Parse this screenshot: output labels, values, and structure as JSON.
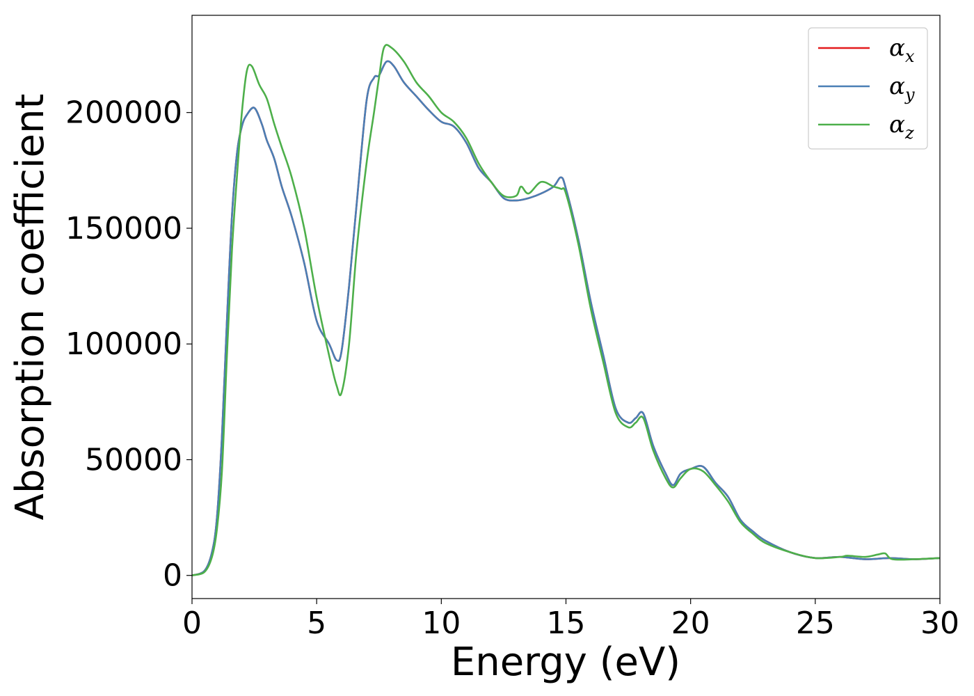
{
  "chart_data": {
    "type": "line",
    "title": "",
    "xlabel": "Energy (eV)",
    "ylabel": "Absorption coefficient",
    "xlim": [
      0,
      30
    ],
    "ylim": [
      -10000,
      242000
    ],
    "xticks": [
      0,
      5,
      10,
      15,
      20,
      25,
      30
    ],
    "xtick_labels": [
      "0",
      "5",
      "10",
      "15",
      "20",
      "25",
      "30"
    ],
    "yticks": [
      0,
      50000,
      100000,
      150000,
      200000
    ],
    "ytick_labels": [
      "0",
      "50000",
      "100000",
      "150000",
      "200000"
    ],
    "grid": false,
    "legend_position": "top-right",
    "series": [
      {
        "name": "α",
        "subscript": "x",
        "color": "#e41a1c",
        "x": [
          0,
          0.5,
          0.8,
          1.0,
          1.2,
          1.4,
          1.6,
          1.8,
          2.0,
          2.2,
          2.5,
          2.8,
          3.0,
          3.3,
          3.6,
          4.0,
          4.5,
          5.0,
          5.5,
          5.8,
          6.0,
          6.3,
          6.6,
          7.0,
          7.3,
          7.5,
          7.8,
          8.1,
          8.5,
          9.0,
          9.5,
          10.0,
          10.5,
          11.0,
          11.5,
          12.0,
          12.5,
          13.0,
          13.5,
          14.0,
          14.5,
          14.8,
          15.0,
          15.5,
          16.0,
          16.5,
          17.0,
          17.5,
          17.8,
          18.1,
          18.5,
          19.0,
          19.3,
          19.6,
          20.0,
          20.5,
          21.0,
          21.5,
          22.0,
          22.5,
          23.0,
          24.0,
          25.0,
          26.0,
          27.0,
          28.0,
          29.0,
          30.0
        ],
        "values": [
          0,
          2000,
          10000,
          25000,
          60000,
          110000,
          155000,
          182000,
          194000,
          199000,
          202000,
          195000,
          188000,
          180000,
          168000,
          155000,
          135000,
          110000,
          100000,
          93000,
          97000,
          125000,
          160000,
          205000,
          215000,
          216000,
          222000,
          220000,
          213000,
          207000,
          201000,
          196000,
          194000,
          187000,
          176000,
          170000,
          163000,
          162000,
          163000,
          165000,
          168000,
          172000,
          167000,
          145000,
          118000,
          95000,
          72000,
          66000,
          68000,
          70000,
          56000,
          44000,
          39000,
          44000,
          46000,
          47000,
          40000,
          34000,
          24000,
          19000,
          15000,
          10000,
          7500,
          8000,
          7000,
          7500,
          7000,
          7500
        ]
      },
      {
        "name": "α",
        "subscript": "y",
        "color": "#4a7fb5",
        "x": [
          0,
          0.5,
          0.8,
          1.0,
          1.2,
          1.4,
          1.6,
          1.8,
          2.0,
          2.2,
          2.5,
          2.8,
          3.0,
          3.3,
          3.6,
          4.0,
          4.5,
          5.0,
          5.5,
          5.8,
          6.0,
          6.3,
          6.6,
          7.0,
          7.3,
          7.5,
          7.8,
          8.1,
          8.5,
          9.0,
          9.5,
          10.0,
          10.5,
          11.0,
          11.5,
          12.0,
          12.5,
          13.0,
          13.5,
          14.0,
          14.5,
          14.8,
          15.0,
          15.5,
          16.0,
          16.5,
          17.0,
          17.5,
          17.8,
          18.1,
          18.5,
          19.0,
          19.3,
          19.6,
          20.0,
          20.5,
          21.0,
          21.5,
          22.0,
          22.5,
          23.0,
          24.0,
          25.0,
          26.0,
          27.0,
          28.0,
          29.0,
          30.0
        ],
        "values": [
          0,
          2000,
          10000,
          25000,
          60000,
          110000,
          155000,
          182000,
          194000,
          199000,
          202000,
          195000,
          188000,
          180000,
          168000,
          155000,
          135000,
          110000,
          100000,
          93000,
          97000,
          125000,
          160000,
          205000,
          215000,
          216000,
          222000,
          220000,
          213000,
          207000,
          201000,
          196000,
          194000,
          187000,
          176000,
          170000,
          163000,
          162000,
          163000,
          165000,
          168000,
          172000,
          167000,
          145000,
          118000,
          95000,
          72000,
          66000,
          68000,
          70000,
          56000,
          44000,
          39000,
          44000,
          46000,
          47000,
          40000,
          34000,
          24000,
          19000,
          15000,
          10000,
          7500,
          8000,
          7000,
          7500,
          7000,
          7500
        ]
      },
      {
        "name": "α",
        "subscript": "z",
        "color": "#4daf4a",
        "x": [
          0,
          0.5,
          0.8,
          1.0,
          1.2,
          1.4,
          1.6,
          1.8,
          2.0,
          2.2,
          2.4,
          2.7,
          3.0,
          3.3,
          3.6,
          4.0,
          4.5,
          5.0,
          5.5,
          5.8,
          6.0,
          6.3,
          6.6,
          7.0,
          7.3,
          7.5,
          7.7,
          8.0,
          8.5,
          9.0,
          9.5,
          10.0,
          10.5,
          11.0,
          11.5,
          12.0,
          12.5,
          13.0,
          13.2,
          13.5,
          14.0,
          14.5,
          14.8,
          15.0,
          15.5,
          16.0,
          16.5,
          17.0,
          17.5,
          17.8,
          18.1,
          18.5,
          19.0,
          19.3,
          19.6,
          20.0,
          20.5,
          21.0,
          21.5,
          22.0,
          22.5,
          23.0,
          24.0,
          25.0,
          26.0,
          26.3,
          27.0,
          27.5,
          27.8,
          28.1,
          29.0,
          30.0
        ],
        "values": [
          0,
          1500,
          8000,
          20000,
          45000,
          95000,
          140000,
          172000,
          200000,
          218000,
          220000,
          212000,
          206000,
          195000,
          185000,
          172000,
          150000,
          120000,
          95000,
          82000,
          79000,
          100000,
          140000,
          178000,
          200000,
          215000,
          228000,
          228000,
          222000,
          213000,
          207000,
          200000,
          196000,
          189000,
          178000,
          170000,
          164000,
          164000,
          168000,
          165000,
          170000,
          168000,
          167000,
          165000,
          143000,
          115000,
          92000,
          70000,
          64000,
          66000,
          68000,
          54000,
          42000,
          38000,
          42000,
          46000,
          45000,
          39000,
          32000,
          23000,
          18000,
          14000,
          10000,
          7500,
          8000,
          8500,
          8000,
          9000,
          9500,
          7000,
          7000,
          7500
        ]
      }
    ]
  }
}
